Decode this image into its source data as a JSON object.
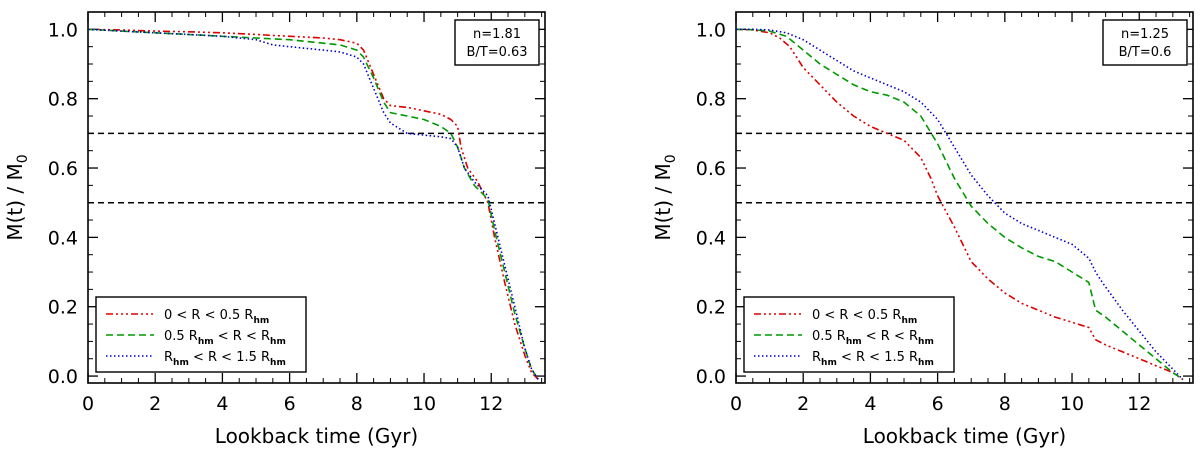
{
  "chart_data": [
    {
      "type": "line",
      "xlabel": "Lookback time (Gyr)",
      "ylabel": "M(t)  / M",
      "ylabel_sub": "0",
      "xlim": [
        0,
        13.6
      ],
      "ylim": [
        -0.02,
        1.05
      ],
      "xticks": [
        0,
        2,
        4,
        6,
        8,
        10,
        12
      ],
      "yticks": [
        0.0,
        0.2,
        0.4,
        0.6,
        0.8,
        1.0
      ],
      "ytick_labels": [
        "0.0",
        "0.2",
        "0.4",
        "0.6",
        "0.8",
        "1.0"
      ],
      "hlines": [
        0.7,
        0.5
      ],
      "annotation": [
        "n=1.81",
        "B/T=0.63"
      ],
      "legend_position": "bottom-left",
      "series": [
        {
          "label_parts": [
            [
              "0 < R < 0.5 R",
              false
            ],
            [
              "hm",
              true
            ]
          ],
          "color": "#dd0000",
          "dash": "7 3 2 3 2 3 2 3",
          "x": [
            0,
            1,
            2,
            3,
            4,
            5,
            6,
            7,
            7.5,
            8,
            8.2,
            8.5,
            8.8,
            9,
            9.5,
            10,
            10.5,
            10.8,
            11,
            11.1,
            11.3,
            11.6,
            11.9,
            12.1,
            12.4,
            12.7,
            13.0,
            13.2,
            13.4
          ],
          "y": [
            1.0,
            0.998,
            0.995,
            0.993,
            0.99,
            0.985,
            0.98,
            0.975,
            0.97,
            0.96,
            0.94,
            0.87,
            0.8,
            0.78,
            0.775,
            0.765,
            0.755,
            0.74,
            0.72,
            0.66,
            0.6,
            0.56,
            0.5,
            0.4,
            0.27,
            0.15,
            0.06,
            0.01,
            -0.01
          ]
        },
        {
          "label_parts": [
            [
              "0.5 R",
              false
            ],
            [
              "hm",
              true
            ],
            [
              " < R < R",
              false
            ],
            [
              "hm",
              true
            ]
          ],
          "color": "#009900",
          "dash": "7 4",
          "x": [
            0,
            1,
            2,
            3,
            4,
            5,
            6,
            7,
            7.5,
            8,
            8.2,
            8.5,
            8.8,
            9,
            9.5,
            10,
            10.5,
            10.8,
            11,
            11.2,
            11.5,
            11.9,
            12.1,
            12.4,
            12.7,
            13.0,
            13.2,
            13.4
          ],
          "y": [
            1.0,
            0.995,
            0.99,
            0.985,
            0.98,
            0.975,
            0.97,
            0.96,
            0.955,
            0.94,
            0.92,
            0.86,
            0.79,
            0.76,
            0.75,
            0.74,
            0.72,
            0.7,
            0.66,
            0.6,
            0.55,
            0.51,
            0.42,
            0.3,
            0.18,
            0.08,
            0.02,
            -0.01
          ]
        },
        {
          "label_parts": [
            [
              "R",
              false
            ],
            [
              "hm",
              true
            ],
            [
              " < R < 1.5 R",
              false
            ],
            [
              "hm",
              true
            ]
          ],
          "color": "#0000cc",
          "dash": "1.5 2.5",
          "x": [
            0,
            1,
            2,
            3,
            4,
            5,
            5.5,
            6,
            7,
            7.5,
            8,
            8.2,
            8.5,
            8.8,
            9,
            9.5,
            10,
            10.5,
            10.8,
            11,
            11.2,
            11.5,
            11.9,
            12.1,
            12.4,
            12.7,
            13.0,
            13.2,
            13.4
          ],
          "y": [
            1.0,
            0.995,
            0.99,
            0.985,
            0.98,
            0.97,
            0.955,
            0.95,
            0.94,
            0.935,
            0.92,
            0.9,
            0.83,
            0.76,
            0.73,
            0.7,
            0.695,
            0.69,
            0.685,
            0.66,
            0.6,
            0.56,
            0.52,
            0.44,
            0.32,
            0.2,
            0.08,
            0.02,
            -0.01
          ]
        }
      ]
    },
    {
      "type": "line",
      "xlabel": "Lookback time (Gyr)",
      "ylabel": "M(t)  / M",
      "ylabel_sub": "0",
      "xlim": [
        0,
        13.6
      ],
      "ylim": [
        -0.02,
        1.05
      ],
      "xticks": [
        0,
        2,
        4,
        6,
        8,
        10,
        12
      ],
      "yticks": [
        0.0,
        0.2,
        0.4,
        0.6,
        0.8,
        1.0
      ],
      "ytick_labels": [
        "0.0",
        "0.2",
        "0.4",
        "0.6",
        "0.8",
        "1.0"
      ],
      "hlines": [
        0.7,
        0.5
      ],
      "annotation": [
        "n=1.25",
        "B/T=0.6"
      ],
      "legend_position": "bottom-left",
      "series": [
        {
          "label_parts": [
            [
              "0 < R < 0.5 R",
              false
            ],
            [
              "hm",
              true
            ]
          ],
          "color": "#dd0000",
          "dash": "7 3 2 3 2 3 2 3",
          "x": [
            0,
            0.5,
            1,
            1.3,
            1.6,
            2,
            2.5,
            3,
            3.5,
            4,
            4.5,
            5,
            5.5,
            5.8,
            6,
            6.5,
            7,
            7.5,
            8,
            8.5,
            9,
            9.5,
            10,
            10.5,
            10.7,
            11,
            11.5,
            12,
            12.5,
            13,
            13.3
          ],
          "y": [
            1.0,
            0.998,
            0.99,
            0.975,
            0.95,
            0.89,
            0.84,
            0.79,
            0.75,
            0.72,
            0.7,
            0.68,
            0.63,
            0.57,
            0.52,
            0.43,
            0.33,
            0.28,
            0.24,
            0.21,
            0.19,
            0.17,
            0.155,
            0.14,
            0.105,
            0.09,
            0.07,
            0.05,
            0.03,
            0.01,
            -0.01
          ]
        },
        {
          "label_parts": [
            [
              "0.5 R",
              false
            ],
            [
              "hm",
              true
            ],
            [
              " < R < R",
              false
            ],
            [
              "hm",
              true
            ]
          ],
          "color": "#009900",
          "dash": "7 4",
          "x": [
            0,
            0.5,
            1,
            1.5,
            2,
            2.5,
            3,
            3.5,
            4,
            4.5,
            5,
            5.5,
            6,
            6.5,
            7,
            7.5,
            8,
            8.5,
            9,
            9.5,
            10,
            10.5,
            10.7,
            11,
            11.5,
            12,
            12.5,
            13,
            13.3
          ],
          "y": [
            1.0,
            0.999,
            0.995,
            0.98,
            0.94,
            0.9,
            0.87,
            0.84,
            0.82,
            0.81,
            0.79,
            0.75,
            0.67,
            0.57,
            0.49,
            0.44,
            0.4,
            0.37,
            0.345,
            0.33,
            0.3,
            0.27,
            0.19,
            0.17,
            0.13,
            0.09,
            0.05,
            0.01,
            -0.01
          ]
        },
        {
          "label_parts": [
            [
              "R",
              false
            ],
            [
              "hm",
              true
            ],
            [
              " < R < 1.5 R",
              false
            ],
            [
              "hm",
              true
            ]
          ],
          "color": "#0000cc",
          "dash": "1.5 2.5",
          "x": [
            0,
            0.5,
            1,
            1.5,
            2,
            2.5,
            3,
            3.5,
            4,
            4.5,
            5,
            5.5,
            6,
            6.5,
            7,
            7.5,
            8,
            8.5,
            9,
            9.5,
            10,
            10.5,
            10.7,
            10.9,
            11.5,
            12,
            12.5,
            13,
            13.3
          ],
          "y": [
            1.0,
            1.0,
            0.998,
            0.99,
            0.97,
            0.94,
            0.91,
            0.88,
            0.86,
            0.84,
            0.82,
            0.79,
            0.74,
            0.66,
            0.58,
            0.52,
            0.47,
            0.44,
            0.42,
            0.4,
            0.38,
            0.34,
            0.3,
            0.27,
            0.19,
            0.13,
            0.07,
            0.02,
            -0.01
          ]
        }
      ]
    }
  ]
}
